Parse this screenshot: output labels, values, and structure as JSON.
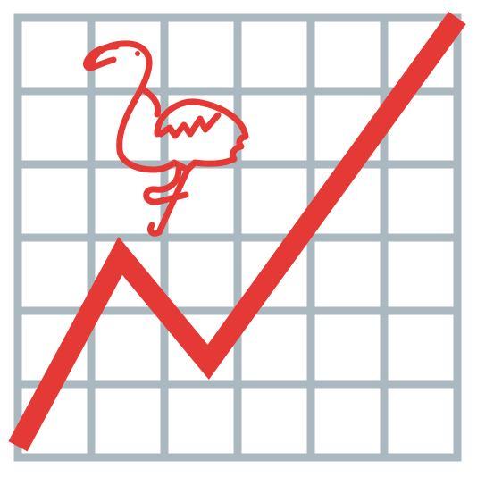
{
  "icon": {
    "name": "flamingo-trend-chart-icon",
    "colors": {
      "grid": "#aab8c0",
      "line": "#e53935",
      "flamingo": "#e53935",
      "background": "#ffffff"
    }
  },
  "chart_data": {
    "type": "line",
    "grid": true,
    "grid_columns": 6,
    "grid_rows": 6,
    "xlim": [
      0,
      6
    ],
    "ylim": [
      0,
      6
    ],
    "series": [
      {
        "values": [
          {
            "x": 0.0,
            "y": 0.15
          },
          {
            "x": 1.4,
            "y": 2.75
          },
          {
            "x": 2.6,
            "y": 1.3
          },
          {
            "x": 6.0,
            "y": 6.0
          }
        ]
      }
    ]
  }
}
